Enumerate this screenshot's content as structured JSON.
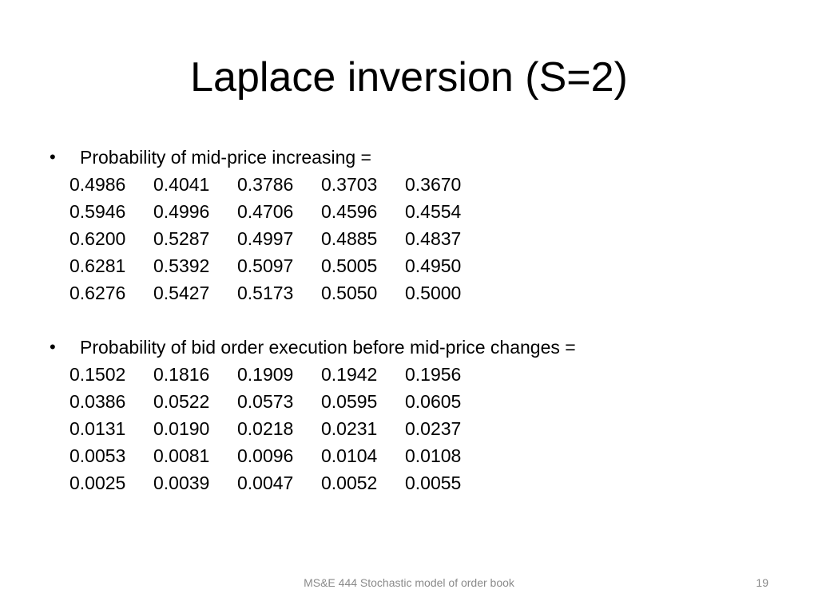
{
  "slide": {
    "title": "Laplace inversion (S=2)",
    "bullets": [
      {
        "symbol": "•",
        "text": "Probability of mid-price increasing =",
        "matrix": [
          [
            "0.4986",
            "0.4041",
            "0.3786",
            "0.3703",
            "0.3670"
          ],
          [
            "0.5946",
            "0.4996",
            "0.4706",
            "0.4596",
            "0.4554"
          ],
          [
            "0.6200",
            "0.5287",
            "0.4997",
            "0.4885",
            "0.4837"
          ],
          [
            "0.6281",
            "0.5392",
            "0.5097",
            "0.5005",
            "0.4950"
          ],
          [
            "0.6276",
            "0.5427",
            "0.5173",
            "0.5050",
            "0.5000"
          ]
        ]
      },
      {
        "symbol": "•",
        "text": "Probability of bid order execution before mid-price changes =",
        "matrix": [
          [
            "0.1502",
            "0.1816",
            "0.1909",
            "0.1942",
            "0.1956"
          ],
          [
            "0.0386",
            "0.0522",
            "0.0573",
            "0.0595",
            "0.0605"
          ],
          [
            "0.0131",
            "0.0190",
            "0.0218",
            "0.0231",
            "0.0237"
          ],
          [
            "0.0053",
            "0.0081",
            "0.0096",
            "0.0104",
            "0.0108"
          ],
          [
            "0.0025",
            "0.0039",
            "0.0047",
            "0.0052",
            "0.0055"
          ]
        ]
      }
    ],
    "footer": "MS&E 444 Stochastic model of order book",
    "page_number": "19"
  }
}
